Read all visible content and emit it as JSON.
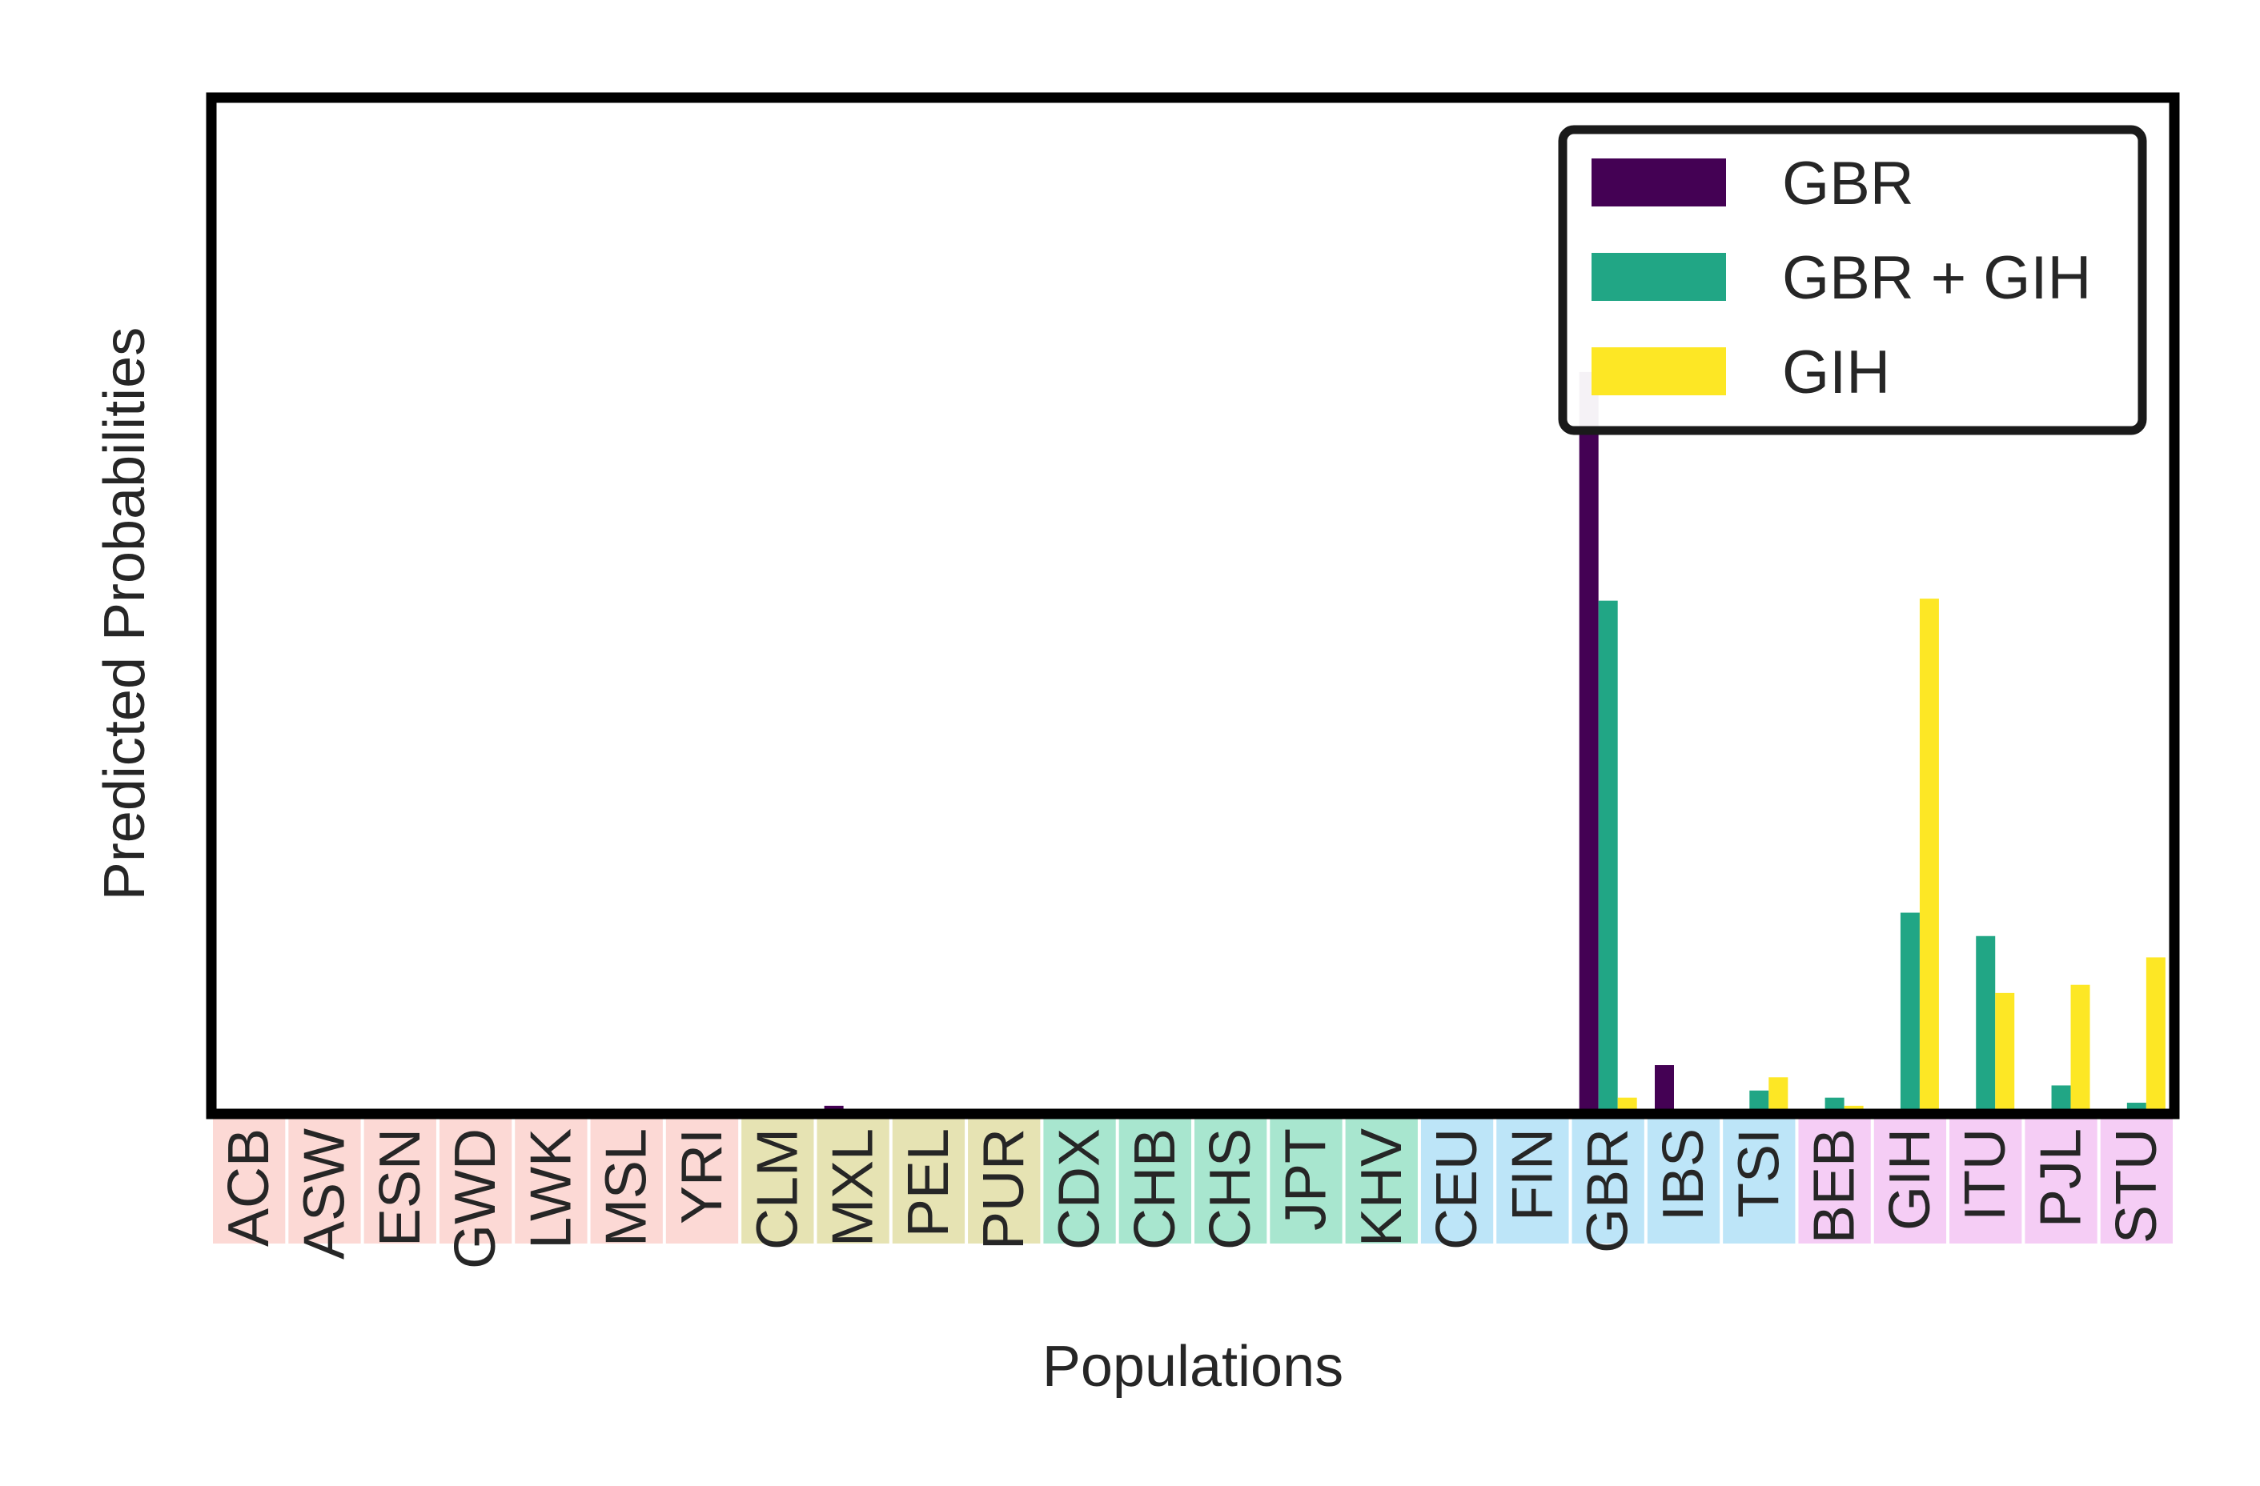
{
  "chart_data": {
    "type": "bar",
    "title": "",
    "xlabel": "Populations",
    "ylabel": "Predicted Probabilities",
    "ylim": [
      0,
      1.0
    ],
    "grid": false,
    "legend_position": "top-right",
    "categories": [
      "ACB",
      "ASW",
      "ESN",
      "GWD",
      "LWK",
      "MSL",
      "YRI",
      "CLM",
      "MXL",
      "PEL",
      "PUR",
      "CDX",
      "CHB",
      "CHS",
      "JPT",
      "KHV",
      "CEU",
      "FIN",
      "GBR",
      "IBS",
      "TSI",
      "BEB",
      "GIH",
      "ITU",
      "PJL",
      "STU"
    ],
    "category_colors": [
      "#fcd9d5",
      "#fcd9d5",
      "#fcd9d5",
      "#fcd9d5",
      "#fcd9d5",
      "#fcd9d5",
      "#fcd9d5",
      "#e6e3b3",
      "#e6e3b3",
      "#e6e3b3",
      "#e6e3b3",
      "#a8e6cf",
      "#a8e6cf",
      "#a8e6cf",
      "#a8e6cf",
      "#a8e6cf",
      "#bde5f8",
      "#bde5f8",
      "#bde5f8",
      "#bde5f8",
      "#bde5f8",
      "#f5cdf5",
      "#f5cdf5",
      "#f5cdf5",
      "#f5cdf5",
      "#f5cdf5"
    ],
    "series": [
      {
        "name": "GBR",
        "color": "#440154",
        "values": [
          0,
          0,
          0,
          0,
          0,
          0,
          0,
          0,
          0.008,
          0,
          0,
          0,
          0,
          0,
          0.002,
          0,
          0,
          0,
          0.73,
          0.048,
          0,
          0,
          0,
          0,
          0,
          0
        ]
      },
      {
        "name": "GBR + GIH",
        "color": "#21a685",
        "values": [
          0,
          0,
          0,
          0,
          0,
          0,
          0,
          0,
          0.004,
          0,
          0,
          0,
          0,
          0,
          0,
          0,
          0,
          0,
          0.505,
          0,
          0.023,
          0.016,
          0.198,
          0.175,
          0.028,
          0.011
        ]
      },
      {
        "name": "GIH",
        "color": "#fde725",
        "values": [
          0,
          0,
          0,
          0,
          0,
          0,
          0,
          0,
          0,
          0,
          0,
          0,
          0,
          0,
          0,
          0,
          0,
          0,
          0.016,
          0,
          0.036,
          0.008,
          0.507,
          0.119,
          0.127,
          0.154
        ]
      }
    ]
  }
}
